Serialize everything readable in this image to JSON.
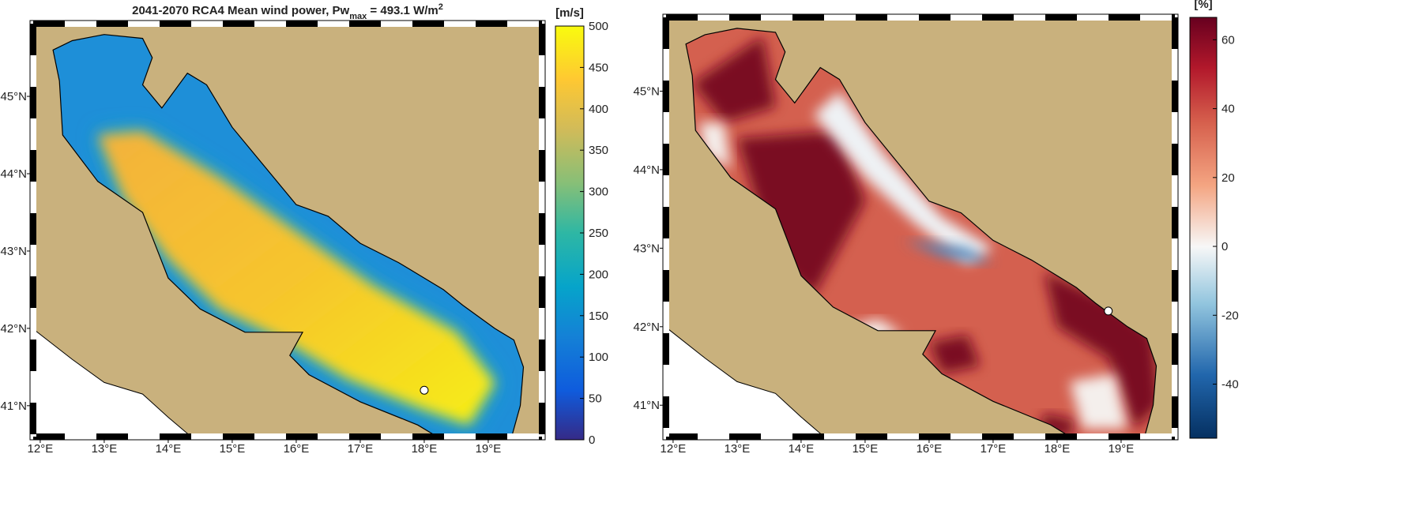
{
  "map": {
    "xlim": [
      11.89,
      19.84
    ],
    "ylim": [
      40.6,
      45.94
    ],
    "xticks": [
      {
        "value": 12,
        "label": "12°E"
      },
      {
        "value": 13,
        "label": "13°E"
      },
      {
        "value": 14,
        "label": "14°E"
      },
      {
        "value": 15,
        "label": "15°E"
      },
      {
        "value": 16,
        "label": "16°E"
      },
      {
        "value": 17,
        "label": "17°E"
      },
      {
        "value": 18,
        "label": "18°E"
      },
      {
        "value": 19,
        "label": "19°E"
      }
    ],
    "yticks": [
      {
        "value": 41,
        "label": "41°N"
      },
      {
        "value": 42,
        "label": "42°N"
      },
      {
        "value": 43,
        "label": "43°N"
      },
      {
        "value": 44,
        "label": "44°N"
      },
      {
        "value": 45,
        "label": "45°N"
      }
    ]
  },
  "panels": [
    {
      "title": {
        "main": "2041-2070 RCA4   Mean wind power,  Pw",
        "sub": "max",
        "mid": " = 493.1 W/m",
        "sup": "2"
      },
      "colorbar": {
        "label": "[m/s]",
        "lim": [
          0,
          500
        ],
        "ticks": [
          0,
          50,
          100,
          150,
          200,
          250,
          300,
          350,
          400,
          450,
          500
        ]
      }
    },
    {
      "colorbar": {
        "label": "[%]",
        "lim": [
          -55.7,
          66.5
        ],
        "ticks": [
          -40,
          -20,
          0,
          20,
          40,
          60
        ]
      }
    }
  ]
}
